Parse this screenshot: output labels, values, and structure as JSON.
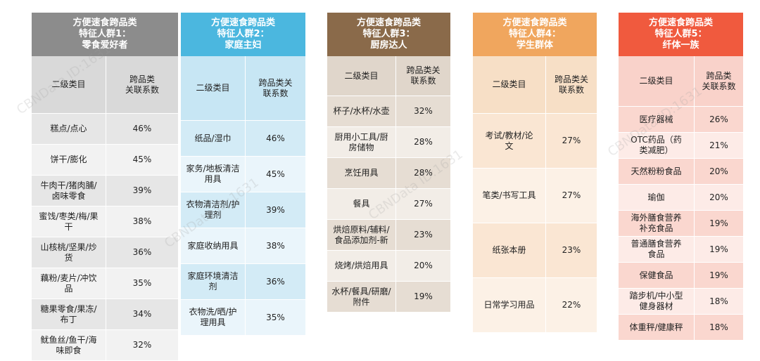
{
  "watermark": "CBNData ID:1631",
  "chart_data": [
    {
      "type": "table",
      "title_lines": [
        "方便速食跨品类",
        "特征人群1：",
        "零食爱好者"
      ],
      "header_color": "#8c8c8c",
      "head_bg": "#d9d9d9",
      "row_bg_a": "#e6e6e6",
      "row_bg_b": "#f2f2f2",
      "columns": [
        "二级类目",
        "跨品类\n关联系数"
      ],
      "rows": [
        [
          "糕点/点心",
          "46%"
        ],
        [
          "饼干/膨化",
          "45%"
        ],
        [
          "牛肉干/猪肉脯/\n卤味零食",
          "39%"
        ],
        [
          "蜜饯/枣类/梅/果\n干",
          "38%"
        ],
        [
          "山核桃/坚果/炒\n货",
          "36%"
        ],
        [
          "藕粉/麦片/冲饮\n品",
          "35%"
        ],
        [
          "糖果零食/果冻/\n布丁",
          "34%"
        ],
        [
          "鱿鱼丝/鱼干/海\n味即食",
          "32%"
        ]
      ],
      "values": [
        46,
        45,
        39,
        38,
        36,
        35,
        34,
        32
      ]
    },
    {
      "type": "table",
      "title_lines": [
        "方便速食跨品类",
        "特征人群2：",
        "家庭主妇"
      ],
      "header_color": "#4bb7df",
      "head_bg": "#c7e6f4",
      "row_bg_a": "#d3ebf6",
      "row_bg_b": "#eaf5fb",
      "columns": [
        "二级类目",
        "跨品类关\n联系数"
      ],
      "rows": [
        [
          "纸品/湿巾",
          "46%"
        ],
        [
          "家务/地板清洁\n用具",
          "45%"
        ],
        [
          "衣物清洁剂/护\n理剂",
          "39%"
        ],
        [
          "家庭收纳用具",
          "38%"
        ],
        [
          "家庭环境清洁\n剂",
          "36%"
        ],
        [
          "衣物洗/晒/护\n理用具",
          "35%"
        ]
      ],
      "values": [
        46,
        45,
        39,
        38,
        36,
        35
      ]
    },
    {
      "type": "table",
      "title_lines": [
        "方便速食跨品类",
        "特征人群3：",
        "厨房达人"
      ],
      "header_color": "#8a6a4a",
      "head_bg": "#e0d6cb",
      "row_bg_a": "#e6ddd3",
      "row_bg_b": "#f2ede7",
      "columns": [
        "二级类目",
        "跨品类关\n联系数"
      ],
      "rows": [
        [
          "杯子/水杯/水壶",
          "32%"
        ],
        [
          "厨用小工具/厨\n房储物",
          "28%"
        ],
        [
          "烹饪用具",
          "28%"
        ],
        [
          "餐具",
          "27%"
        ],
        [
          "烘焙原料/辅料/\n食品添加剂-新",
          "23%"
        ],
        [
          "烧烤/烘焙用具",
          "20%"
        ],
        [
          "水杯/餐具/研磨/\n附件",
          "19%"
        ]
      ],
      "values": [
        32,
        28,
        28,
        27,
        23,
        20,
        19
      ]
    },
    {
      "type": "table",
      "title_lines": [
        "方便速食跨品类",
        "特征人群4：",
        "学生群体"
      ],
      "header_color": "#f0a65e",
      "head_bg": "#f7dfc6",
      "row_bg_a": "#fae6d3",
      "row_bg_b": "#fcf1e6",
      "columns": [
        "二级类目",
        "跨品类关\n联系数"
      ],
      "rows": [
        [
          "考试/教材/论\n文",
          "27%"
        ],
        [
          "笔类/书写工具",
          "27%"
        ],
        [
          "纸张本册",
          "23%"
        ],
        [
          "日常学习用品",
          "22%"
        ]
      ],
      "values": [
        27,
        27,
        23,
        22
      ]
    },
    {
      "type": "table",
      "title_lines": [
        "方便速食跨品类",
        "特征人群5：",
        "纤体一族"
      ],
      "header_color": "#f05a3e",
      "head_bg": "#f9d2ca",
      "row_bg_a": "#fad7cf",
      "row_bg_b": "#fdebe7",
      "columns": [
        "二级类目",
        "跨品类\n关联系数"
      ],
      "rows": [
        [
          "医疗器械",
          "26%"
        ],
        [
          "OTC药品（药\n类减肥）",
          "21%"
        ],
        [
          "天然粉粉食品",
          "20%"
        ],
        [
          "瑜伽",
          "20%"
        ],
        [
          "海外膳食营养\n补充食品",
          "19%"
        ],
        [
          "普通膳食营养\n食品",
          "19%"
        ],
        [
          "保健食品",
          "19%"
        ],
        [
          "踏步机/中小型\n健身器材",
          "18%"
        ],
        [
          "体重秤/健康秤",
          "18%"
        ]
      ],
      "values": [
        26,
        21,
        20,
        20,
        19,
        19,
        19,
        18,
        18
      ]
    }
  ]
}
